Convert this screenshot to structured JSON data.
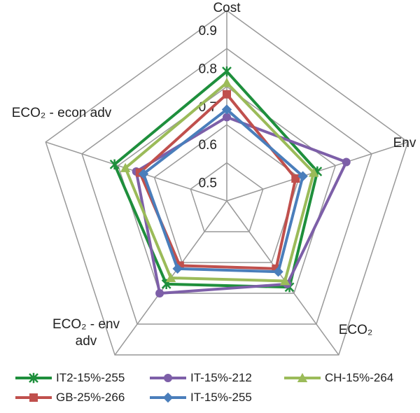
{
  "chart_data": {
    "type": "radar",
    "categories": [
      "Cost",
      "Env",
      "ECO₂",
      "ECO₂ - env adv",
      "ECO₂ - econ adv"
    ],
    "ylim": [
      0.4,
      0.9
    ],
    "yticks": [
      0.5,
      0.6,
      0.7,
      0.8,
      0.9
    ],
    "grid": true,
    "legend": "bottom",
    "series": [
      {
        "name": "IT2-15%-255",
        "color": "#1e8f3c",
        "marker": "x",
        "values": [
          0.74,
          0.65,
          0.68,
          0.67,
          0.71
        ]
      },
      {
        "name": "IT-15%-212",
        "color": "#7d5fa8",
        "marker": "circle",
        "values": [
          0.62,
          0.73,
          0.67,
          0.7,
          0.65
        ]
      },
      {
        "name": "CH-15%-264",
        "color": "#9bbb59",
        "marker": "triangle",
        "values": [
          0.71,
          0.64,
          0.66,
          0.65,
          0.68
        ]
      },
      {
        "name": "GB-25%-266",
        "color": "#c0504d",
        "marker": "square",
        "values": [
          0.68,
          0.59,
          0.62,
          0.61,
          0.64
        ]
      },
      {
        "name": "IT-15%-255",
        "color": "#4a7ebb",
        "marker": "diamond",
        "values": [
          0.64,
          0.61,
          0.63,
          0.62,
          0.63
        ]
      }
    ]
  }
}
